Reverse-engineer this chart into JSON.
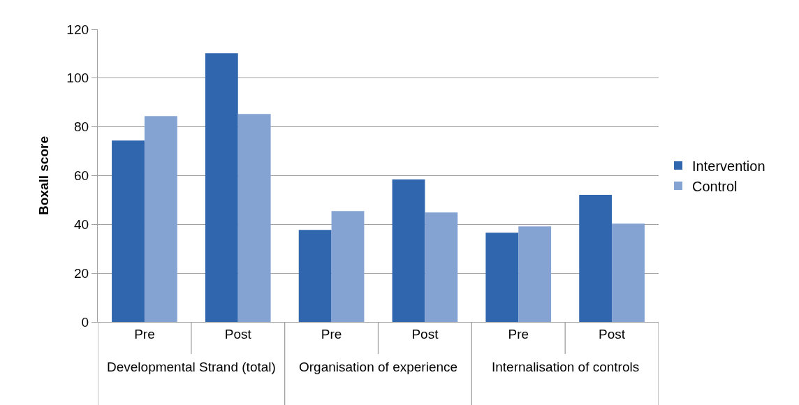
{
  "chart_data": {
    "type": "bar",
    "ylabel": "Boxall score",
    "categories": [
      "Pre",
      "Post",
      "Pre",
      "Post",
      "Pre",
      "Post"
    ],
    "annotations": [
      "Developmental Strand (total)",
      "Organisation of experience",
      "Internalisation of controls"
    ],
    "series": [
      {
        "name": "Intervention",
        "color": "#2f66ad",
        "values": [
          74.4,
          110.2,
          37.7,
          58.4,
          36.6,
          52.1
        ]
      },
      {
        "name": "Control",
        "color": "#84a2d2",
        "values": [
          84.4,
          85.3,
          45.5,
          44.9,
          39.2,
          40.3
        ]
      }
    ],
    "ylim": [
      0,
      120
    ],
    "yticks": [
      0,
      20,
      40,
      60,
      80,
      100,
      120
    ],
    "grid": "y",
    "legend": "right"
  }
}
